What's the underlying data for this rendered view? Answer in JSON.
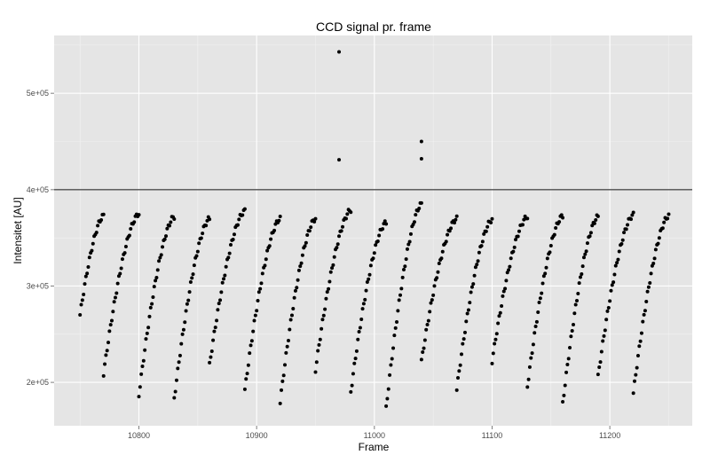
{
  "chart_data": {
    "type": "scatter",
    "title": "CCD signal pr. frame",
    "xlabel": "Frame",
    "ylabel": "Intensitet [AU]",
    "xlim": [
      10728,
      11270
    ],
    "ylim": [
      155000,
      560000
    ],
    "x_ticks": [
      10800,
      10900,
      11000,
      11100,
      11200
    ],
    "x_tick_labels": [
      "10800",
      "10900",
      "11000",
      "11100",
      "11200"
    ],
    "y_ticks": [
      200000,
      300000,
      400000,
      500000
    ],
    "y_tick_labels": [
      "2e+05",
      "3e+05",
      "4e+05",
      "5e+05"
    ],
    "hline": 400000,
    "grid": true,
    "background": "#e5e5e5",
    "grid_color": "#ffffff",
    "point_color": "#000000",
    "line_color": "#4d4d4d",
    "runs": [
      {
        "x0": 10750,
        "x1": 10770,
        "y0": 270000,
        "y1": 373000
      },
      {
        "x0": 10770,
        "x1": 10800,
        "y0": 209000,
        "y1": 375000
      },
      {
        "x0": 10800,
        "x1": 10830,
        "y0": 187000,
        "y1": 372000
      },
      {
        "x0": 10830,
        "x1": 10860,
        "y0": 183000,
        "y1": 370000
      },
      {
        "x0": 10860,
        "x1": 10890,
        "y0": 218000,
        "y1": 378000
      },
      {
        "x0": 10890,
        "x1": 10920,
        "y0": 192000,
        "y1": 370000
      },
      {
        "x0": 10920,
        "x1": 10950,
        "y0": 180000,
        "y1": 370000
      },
      {
        "x0": 10950,
        "x1": 10980,
        "y0": 213000,
        "y1": 379000
      },
      {
        "x0": 10980,
        "x1": 11010,
        "y0": 190000,
        "y1": 366000
      },
      {
        "x0": 11010,
        "x1": 11040,
        "y0": 173000,
        "y1": 385000
      },
      {
        "x0": 11040,
        "x1": 11070,
        "y0": 222000,
        "y1": 370000
      },
      {
        "x0": 11070,
        "x1": 11100,
        "y0": 193000,
        "y1": 369000
      },
      {
        "x0": 11100,
        "x1": 11130,
        "y0": 222000,
        "y1": 372000
      },
      {
        "x0": 11130,
        "x1": 11160,
        "y0": 196000,
        "y1": 373000
      },
      {
        "x0": 11160,
        "x1": 11190,
        "y0": 178000,
        "y1": 372000
      },
      {
        "x0": 11190,
        "x1": 11220,
        "y0": 206000,
        "y1": 374000
      },
      {
        "x0": 11220,
        "x1": 11250,
        "y0": 189000,
        "y1": 373000
      }
    ],
    "outliers": [
      {
        "x": 10970,
        "y": 543000
      },
      {
        "x": 10970,
        "y": 431000
      },
      {
        "x": 11040,
        "y": 450000
      },
      {
        "x": 11040,
        "y": 432000
      }
    ]
  }
}
